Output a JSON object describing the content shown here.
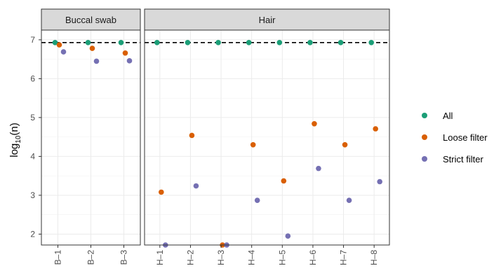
{
  "chart_data": {
    "type": "scatter",
    "ylabel_base": "log",
    "ylabel_sub": "10",
    "ylabel_arg": "(n)",
    "ylim": [
      1.72,
      7.25
    ],
    "yticks": [
      "2",
      "3",
      "4",
      "5",
      "6",
      "7"
    ],
    "reference_line": {
      "y": 6.93,
      "style": "dashed",
      "color": "#000000"
    },
    "legend": {
      "position": "right",
      "entries": [
        {
          "name": "All",
          "color": "#1B9E77"
        },
        {
          "name": "Loose filter",
          "color": "#D95F02"
        },
        {
          "name": "Strict filter",
          "color": "#7570B3"
        }
      ]
    },
    "panels": [
      {
        "strip": "Buccal swab",
        "categories": [
          "B–1",
          "B–2",
          "B–3"
        ],
        "series": [
          {
            "name": "All",
            "values": [
              6.93,
              6.93,
              6.93
            ]
          },
          {
            "name": "Loose filter",
            "values": [
              6.87,
              6.78,
              6.66
            ]
          },
          {
            "name": "Strict filter",
            "values": [
              6.69,
              6.45,
              6.46
            ]
          }
        ]
      },
      {
        "strip": "Hair",
        "categories": [
          "H–1",
          "H–2",
          "H–3",
          "H–4",
          "H–5",
          "H–6",
          "H–7",
          "H–8"
        ],
        "series": [
          {
            "name": "All",
            "values": [
              6.93,
              6.93,
              6.93,
              6.93,
              6.93,
              6.93,
              6.93,
              6.93
            ]
          },
          {
            "name": "Loose filter",
            "values": [
              3.08,
              4.54,
              1.72,
              4.3,
              3.37,
              4.84,
              4.3,
              4.71
            ]
          },
          {
            "name": "Strict filter",
            "values": [
              1.72,
              3.24,
              1.72,
              2.87,
              1.95,
              3.69,
              2.87,
              3.35
            ]
          }
        ]
      }
    ]
  }
}
